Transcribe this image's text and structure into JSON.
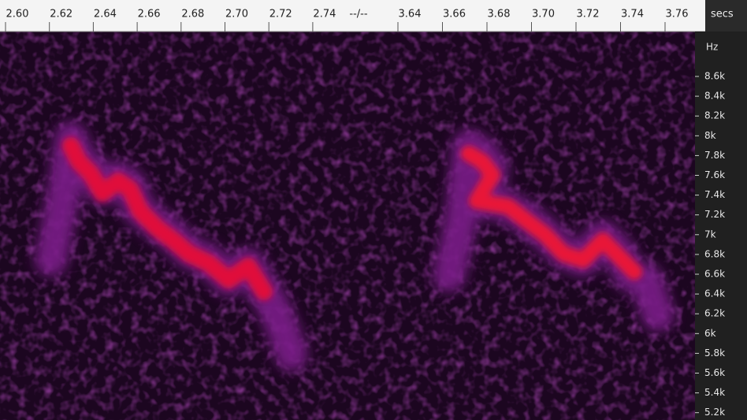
{
  "time_ruler": {
    "labels_before_break": [
      "2.60",
      "2.62",
      "2.64",
      "2.66",
      "2.68",
      "2.70",
      "2.72",
      "2.74"
    ],
    "break_marker": "--/--",
    "labels_after_break": [
      "3.64",
      "3.66",
      "3.68",
      "3.70",
      "3.72",
      "3.74",
      "3.76"
    ],
    "unit": "secs"
  },
  "frequency_axis": {
    "unit": "Hz",
    "labels": [
      "8.6k",
      "8.4k",
      "8.2k",
      "8k",
      "7.8k",
      "7.6k",
      "7.4k",
      "7.2k",
      "7k",
      "6.8k",
      "6.6k",
      "6.4k",
      "6.2k",
      "6k",
      "5.8k",
      "5.6k",
      "5.4k",
      "5.2k"
    ]
  }
}
